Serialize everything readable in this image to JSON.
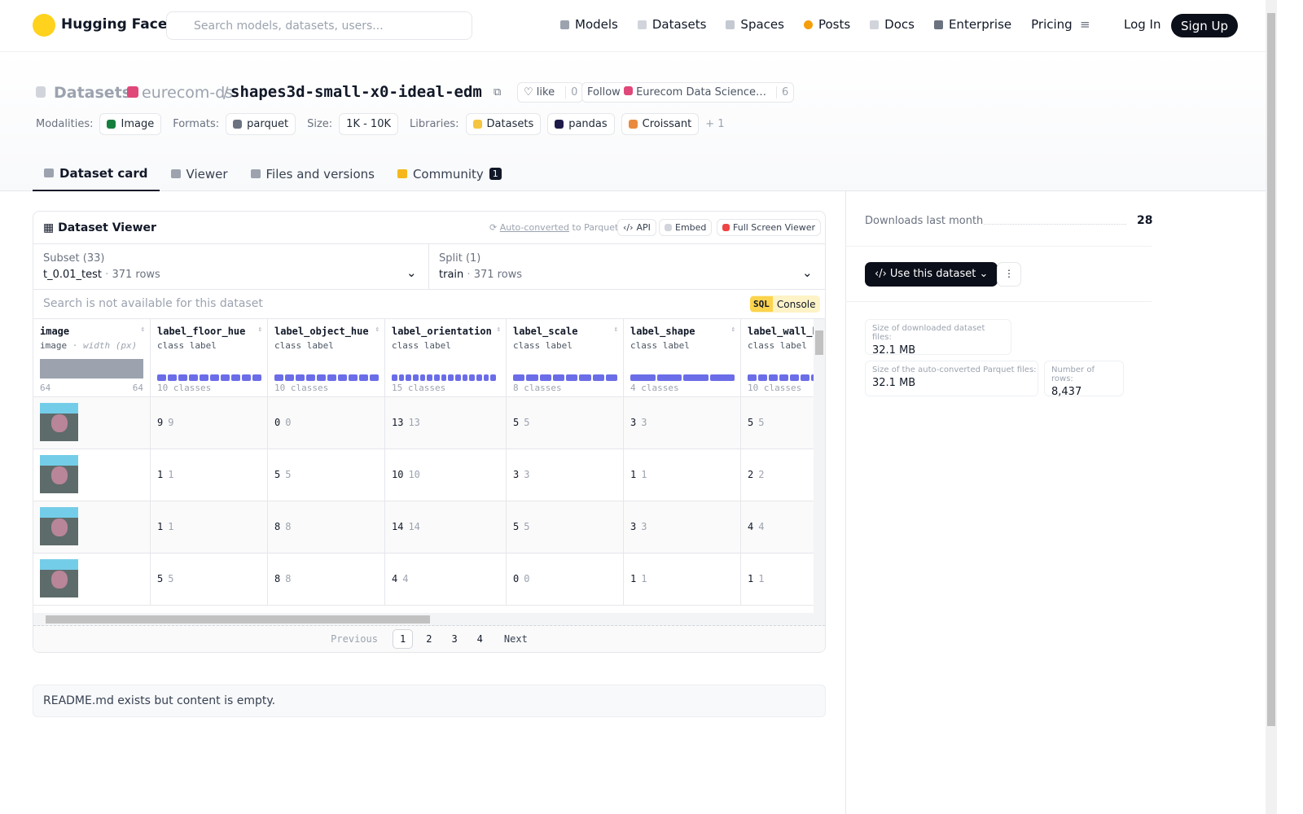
{
  "nav": {
    "brand": "Hugging Face",
    "search_placeholder": "Search models, datasets, users...",
    "links": [
      "Models",
      "Datasets",
      "Spaces",
      "Posts",
      "Docs",
      "Enterprise",
      "Pricing"
    ],
    "login": "Log In",
    "signup": "Sign Up"
  },
  "header": {
    "kind": "Datasets:",
    "owner": "eurecom-ds",
    "separator": "/",
    "name": "shapes3d-small-x0-ideal-edm",
    "like": "like",
    "likes": 0,
    "follow": "Follow",
    "org": "Eurecom Data Science…",
    "followers": 6
  },
  "tags": [
    {
      "label": "Modalities:",
      "items": [
        "Image"
      ]
    },
    {
      "label": "Formats:",
      "items": [
        "parquet"
      ]
    },
    {
      "label": "Size:",
      "items": [
        "1K - 10K"
      ]
    },
    {
      "label": "Libraries:",
      "items": [
        "Datasets",
        "pandas",
        "Croissant"
      ]
    }
  ],
  "more_libraries": "+ 1",
  "tabs": [
    {
      "label": "Dataset card"
    },
    {
      "label": "Viewer"
    },
    {
      "label": "Files and versions"
    },
    {
      "label": "Community",
      "badge": 1
    }
  ],
  "viewer": {
    "title": "Dataset Viewer",
    "auto_converted": "Auto-converted",
    "to_parquet": "to Parquet",
    "api": "API",
    "embed": "Embed",
    "full_screen": "Full Screen Viewer",
    "subset": {
      "label": "Subset (33)",
      "value": "t_0.01_test",
      "rows": "371 rows"
    },
    "split": {
      "label": "Split (1)",
      "value": "train",
      "rows": "371 rows"
    },
    "search": "Search is not available for this dataset",
    "sql": "SQL",
    "console": "Console",
    "image_column": {
      "name": "image",
      "type": "image",
      "subtype": "width (px)",
      "min": 64,
      "max": 64
    },
    "columns": [
      {
        "name": "label_floor_hue",
        "type": "class label",
        "classes": 10,
        "classes_label": "10 classes"
      },
      {
        "name": "label_object_hue",
        "type": "class label",
        "classes": 10,
        "classes_label": "10 classes"
      },
      {
        "name": "label_orientation",
        "type": "class label",
        "classes": 15,
        "classes_label": "15 classes"
      },
      {
        "name": "label_scale",
        "type": "class label",
        "classes": 8,
        "classes_label": "8 classes"
      },
      {
        "name": "label_shape",
        "type": "class label",
        "classes": 4,
        "classes_label": "4 classes"
      },
      {
        "name": "label_wall_hue",
        "type": "class label",
        "classes": 10,
        "classes_label": "10 classes"
      }
    ],
    "rows": [
      [
        9,
        0,
        13,
        5,
        3,
        5
      ],
      [
        1,
        5,
        10,
        3,
        1,
        2
      ],
      [
        1,
        8,
        14,
        5,
        3,
        4
      ],
      [
        5,
        8,
        4,
        0,
        1,
        1
      ]
    ],
    "pagination": {
      "previous": "Previous",
      "pages": [
        1,
        2,
        3,
        4
      ],
      "next": "Next"
    }
  },
  "readme": "README.md exists but content is empty.",
  "sidebar": {
    "downloads_label": "Downloads last month",
    "downloads": 28,
    "use_dataset": "Use this dataset",
    "download_size_label": "Size of downloaded dataset files:",
    "download_size": "32.1 MB",
    "parquet_size_label": "Size of the auto-converted Parquet files:",
    "parquet_size": "32.1 MB",
    "rows_label": "Number of rows:",
    "rows": "8,437"
  }
}
